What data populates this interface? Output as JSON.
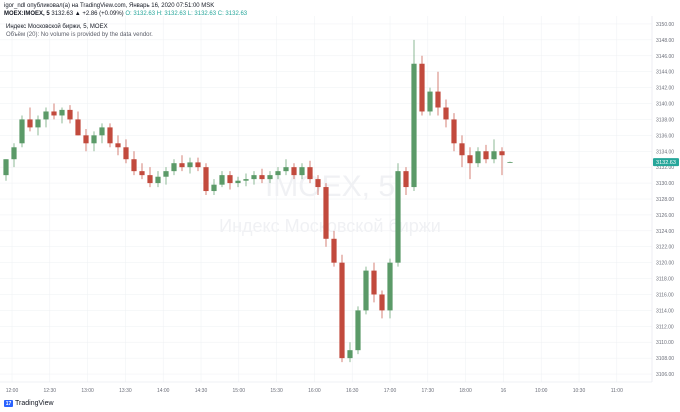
{
  "header": {
    "line1": "igor_ndl опубликовал(а) на TradingView.com, Январь 16, 2020 07:51:00 MSK",
    "symbol": "MOEX:IMOEX, 5",
    "price_change": "3132.63 ▲ +2.86 (+0.09%)",
    "ohlc": "O: 3132.63 H: 3132.63 L: 3132.63 C: 3132.63"
  },
  "legend": {
    "title": "Индекс Московской биржи, 5, MOEX",
    "volume_note": "Объём (20): No volume is provided by the data vendor."
  },
  "watermark": {
    "symbol": "IMOEX, 5",
    "name": "Индекс Московской биржи"
  },
  "footer": {
    "brand": "TradingView"
  },
  "colors": {
    "up": "#5b9a68",
    "down": "#c24a3d",
    "grid": "#eef0f3",
    "price_tag": "#26a69a",
    "watermark": "#f2f3f5"
  },
  "chart_data": {
    "type": "candlestick",
    "last_price": "3132.63",
    "y_ticks": [
      "3150.00",
      "3148.00",
      "3146.00",
      "3144.00",
      "3142.00",
      "3140.00",
      "3138.00",
      "3136.00",
      "3134.00",
      "3132.00",
      "3130.00",
      "3128.00",
      "3126.00",
      "3124.00",
      "3122.00",
      "3120.00",
      "3118.00",
      "3116.00",
      "3114.00",
      "3112.00",
      "3110.00",
      "3108.00",
      "3106.00"
    ],
    "ylim": [
      3105,
      3151
    ],
    "x_ticks": [
      "12:00",
      "12:30",
      "13:00",
      "13:30",
      "14:00",
      "14:30",
      "15:00",
      "15:30",
      "16:00",
      "16:30",
      "17:00",
      "17:30",
      "18:00",
      "16",
      "10:00",
      "10:30",
      "11:00"
    ],
    "candles": [
      {
        "o": 3131.0,
        "h": 3133.0,
        "l": 3130.3,
        "c": 3133.0
      },
      {
        "o": 3133.0,
        "h": 3135.0,
        "l": 3132.0,
        "c": 3134.5
      },
      {
        "o": 3135.0,
        "h": 3138.5,
        "l": 3134.5,
        "c": 3138.0
      },
      {
        "o": 3138.0,
        "h": 3139.5,
        "l": 3136.5,
        "c": 3137.0
      },
      {
        "o": 3137.0,
        "h": 3138.5,
        "l": 3136.0,
        "c": 3138.0
      },
      {
        "o": 3138.0,
        "h": 3139.5,
        "l": 3137.0,
        "c": 3139.0
      },
      {
        "o": 3139.0,
        "h": 3140.0,
        "l": 3138.0,
        "c": 3138.5
      },
      {
        "o": 3138.5,
        "h": 3139.5,
        "l": 3137.5,
        "c": 3139.2
      },
      {
        "o": 3139.2,
        "h": 3139.8,
        "l": 3137.5,
        "c": 3138.0
      },
      {
        "o": 3138.0,
        "h": 3139.0,
        "l": 3136.0,
        "c": 3136.0
      },
      {
        "o": 3136.0,
        "h": 3136.8,
        "l": 3134.0,
        "c": 3135.0
      },
      {
        "o": 3135.0,
        "h": 3136.5,
        "l": 3134.0,
        "c": 3136.0
      },
      {
        "o": 3136.0,
        "h": 3137.5,
        "l": 3135.0,
        "c": 3137.0
      },
      {
        "o": 3137.0,
        "h": 3137.5,
        "l": 3134.5,
        "c": 3135.0
      },
      {
        "o": 3135.0,
        "h": 3136.0,
        "l": 3133.5,
        "c": 3134.5
      },
      {
        "o": 3134.5,
        "h": 3135.5,
        "l": 3132.5,
        "c": 3133.0
      },
      {
        "o": 3133.0,
        "h": 3134.0,
        "l": 3131.0,
        "c": 3131.5
      },
      {
        "o": 3131.5,
        "h": 3132.5,
        "l": 3130.5,
        "c": 3131.0
      },
      {
        "o": 3131.0,
        "h": 3132.0,
        "l": 3129.5,
        "c": 3130.0
      },
      {
        "o": 3130.0,
        "h": 3131.5,
        "l": 3129.5,
        "c": 3130.8
      },
      {
        "o": 3130.8,
        "h": 3132.0,
        "l": 3129.8,
        "c": 3131.5
      },
      {
        "o": 3131.5,
        "h": 3133.0,
        "l": 3131.0,
        "c": 3132.5
      },
      {
        "o": 3132.5,
        "h": 3133.5,
        "l": 3131.5,
        "c": 3132.0
      },
      {
        "o": 3132.0,
        "h": 3133.2,
        "l": 3131.2,
        "c": 3132.6
      },
      {
        "o": 3132.6,
        "h": 3133.2,
        "l": 3131.5,
        "c": 3132.0
      },
      {
        "o": 3132.0,
        "h": 3132.5,
        "l": 3128.5,
        "c": 3129.0
      },
      {
        "o": 3129.0,
        "h": 3130.5,
        "l": 3128.5,
        "c": 3129.8
      },
      {
        "o": 3129.8,
        "h": 3131.5,
        "l": 3129.5,
        "c": 3131.0
      },
      {
        "o": 3131.0,
        "h": 3131.5,
        "l": 3129.2,
        "c": 3130.0
      },
      {
        "o": 3130.0,
        "h": 3130.8,
        "l": 3129.5,
        "c": 3130.3
      },
      {
        "o": 3130.3,
        "h": 3131.2,
        "l": 3129.6,
        "c": 3130.5
      },
      {
        "o": 3130.5,
        "h": 3131.5,
        "l": 3129.8,
        "c": 3131.0
      },
      {
        "o": 3131.0,
        "h": 3131.8,
        "l": 3130.0,
        "c": 3130.5
      },
      {
        "o": 3130.5,
        "h": 3131.5,
        "l": 3130.0,
        "c": 3131.0
      },
      {
        "o": 3131.0,
        "h": 3132.0,
        "l": 3130.5,
        "c": 3131.5
      },
      {
        "o": 3131.5,
        "h": 3133.0,
        "l": 3131.0,
        "c": 3132.0
      },
      {
        "o": 3132.0,
        "h": 3132.5,
        "l": 3130.5,
        "c": 3131.0
      },
      {
        "o": 3131.0,
        "h": 3132.5,
        "l": 3130.5,
        "c": 3132.0
      },
      {
        "o": 3132.0,
        "h": 3132.8,
        "l": 3130.0,
        "c": 3130.5
      },
      {
        "o": 3130.5,
        "h": 3131.0,
        "l": 3128.5,
        "c": 3129.5
      },
      {
        "o": 3129.5,
        "h": 3130.0,
        "l": 3122.0,
        "c": 3123.0
      },
      {
        "o": 3123.0,
        "h": 3124.0,
        "l": 3119.5,
        "c": 3120.0
      },
      {
        "o": 3120.0,
        "h": 3121.0,
        "l": 3107.5,
        "c": 3108.0
      },
      {
        "o": 3108.0,
        "h": 3110.0,
        "l": 3107.5,
        "c": 3109.0
      },
      {
        "o": 3109.0,
        "h": 3114.5,
        "l": 3108.5,
        "c": 3114.0
      },
      {
        "o": 3114.0,
        "h": 3119.5,
        "l": 3113.5,
        "c": 3119.0
      },
      {
        "o": 3119.0,
        "h": 3120.0,
        "l": 3115.0,
        "c": 3116.0
      },
      {
        "o": 3116.0,
        "h": 3116.5,
        "l": 3113.0,
        "c": 3114.0
      },
      {
        "o": 3114.0,
        "h": 3120.5,
        "l": 3113.0,
        "c": 3120.0
      },
      {
        "o": 3120.0,
        "h": 3132.5,
        "l": 3119.5,
        "c": 3131.5
      },
      {
        "o": 3131.5,
        "h": 3132.0,
        "l": 3128.5,
        "c": 3129.5
      },
      {
        "o": 3129.5,
        "h": 3148.0,
        "l": 3129.0,
        "c": 3145.0
      },
      {
        "o": 3145.0,
        "h": 3146.0,
        "l": 3138.5,
        "c": 3139.0
      },
      {
        "o": 3139.0,
        "h": 3142.0,
        "l": 3138.5,
        "c": 3141.5
      },
      {
        "o": 3141.5,
        "h": 3144.0,
        "l": 3138.5,
        "c": 3139.5
      },
      {
        "o": 3139.5,
        "h": 3140.5,
        "l": 3137.0,
        "c": 3138.0
      },
      {
        "o": 3138.0,
        "h": 3138.8,
        "l": 3134.0,
        "c": 3135.0
      },
      {
        "o": 3135.0,
        "h": 3136.0,
        "l": 3132.0,
        "c": 3133.5
      },
      {
        "o": 3133.5,
        "h": 3134.5,
        "l": 3130.5,
        "c": 3132.5
      },
      {
        "o": 3132.5,
        "h": 3134.5,
        "l": 3132.0,
        "c": 3134.0
      },
      {
        "o": 3134.0,
        "h": 3134.8,
        "l": 3132.5,
        "c": 3133.0
      },
      {
        "o": 3133.0,
        "h": 3135.5,
        "l": 3132.5,
        "c": 3134.0
      },
      {
        "o": 3134.0,
        "h": 3134.5,
        "l": 3131.0,
        "c": 3133.5
      },
      {
        "o": 3132.6,
        "h": 3132.7,
        "l": 3132.6,
        "c": 3132.63
      }
    ]
  }
}
